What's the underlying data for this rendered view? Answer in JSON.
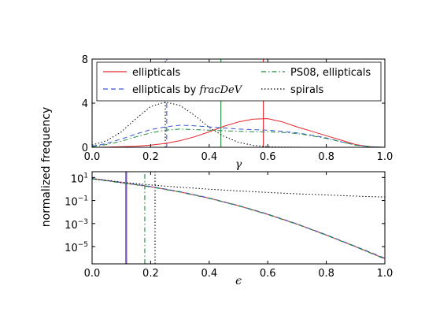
{
  "chart_data": [
    {
      "type": "line",
      "panel": "top",
      "xlabel": "γ",
      "ylabel": "normalized frequency",
      "xlim": [
        0.0,
        1.0
      ],
      "ylim": [
        0,
        8
      ],
      "xticks": [
        "0.0",
        "0.2",
        "0.4",
        "0.6",
        "0.8",
        "1.0"
      ],
      "xtick_values": [
        0.0,
        0.2,
        0.4,
        0.6,
        0.8,
        1.0
      ],
      "yticks": [
        "0",
        "4",
        "8"
      ],
      "ytick_values": [
        0,
        4,
        8
      ],
      "grid": false,
      "legend_position": "top",
      "legend": [
        {
          "series": "ellipticals",
          "text": "ellipticals",
          "color": "#e8262a",
          "dash": "solid"
        },
        {
          "series": "ellipticals_fracdev",
          "text_prefix": "ellipticals by ",
          "text_math": "fracDeV",
          "color": "#3a55d8",
          "dash": "dashed"
        },
        {
          "series": "ps08",
          "text": "PS08, ellipticals",
          "color": "#1a8a3c",
          "dash": "dashdot"
        },
        {
          "series": "spirals",
          "text": "spirals",
          "color": "#000000",
          "dash": "dotted"
        }
      ],
      "series": [
        {
          "key": "ellipticals",
          "color": "#e8262a",
          "dash": "solid",
          "x": [
            0.0,
            0.05,
            0.1,
            0.15,
            0.2,
            0.25,
            0.3,
            0.35,
            0.4,
            0.45,
            0.5,
            0.55,
            0.6,
            0.65,
            0.7,
            0.75,
            0.8,
            0.85,
            0.9,
            0.95,
            1.0
          ],
          "y": [
            0.0,
            0.02,
            0.05,
            0.1,
            0.2,
            0.35,
            0.6,
            0.95,
            1.4,
            1.9,
            2.3,
            2.55,
            2.6,
            2.3,
            1.85,
            1.45,
            1.05,
            0.65,
            0.25,
            0.05,
            0.0
          ]
        },
        {
          "key": "ellipticals_fracdev",
          "color": "#3a55d8",
          "dash": "dashed",
          "x": [
            0.0,
            0.05,
            0.1,
            0.15,
            0.2,
            0.25,
            0.3,
            0.35,
            0.4,
            0.45,
            0.5,
            0.55,
            0.6,
            0.65,
            0.7,
            0.75,
            0.8,
            0.85,
            0.9,
            0.95,
            1.0
          ],
          "y": [
            0.1,
            0.35,
            0.75,
            1.2,
            1.6,
            1.85,
            2.0,
            1.95,
            1.85,
            1.75,
            1.65,
            1.6,
            1.55,
            1.45,
            1.3,
            1.1,
            0.85,
            0.5,
            0.2,
            0.05,
            0.0
          ]
        },
        {
          "key": "ps08",
          "color": "#1a8a3c",
          "dash": "dashdot",
          "x": [
            0.0,
            0.05,
            0.1,
            0.15,
            0.2,
            0.25,
            0.3,
            0.35,
            0.4,
            0.45,
            0.5,
            0.55,
            0.6,
            0.65,
            0.7,
            0.75,
            0.8,
            0.85,
            0.9,
            0.95,
            1.0
          ],
          "y": [
            0.05,
            0.25,
            0.55,
            0.95,
            1.3,
            1.55,
            1.65,
            1.6,
            1.55,
            1.5,
            1.45,
            1.4,
            1.4,
            1.35,
            1.25,
            1.05,
            0.8,
            0.5,
            0.2,
            0.05,
            0.0
          ]
        },
        {
          "key": "spirals",
          "color": "#000000",
          "dash": "dotted",
          "x": [
            0.0,
            0.05,
            0.1,
            0.15,
            0.2,
            0.25,
            0.3,
            0.35,
            0.4,
            0.45,
            0.5,
            0.55,
            0.6,
            0.65,
            0.7,
            0.75
          ],
          "y": [
            0.2,
            0.6,
            1.4,
            2.6,
            3.7,
            4.1,
            3.8,
            2.9,
            1.8,
            1.0,
            0.45,
            0.18,
            0.05,
            0.02,
            0.01,
            0.0
          ]
        }
      ],
      "vlines": [
        {
          "x": 0.25,
          "color": "#000000",
          "dash": "dotted"
        },
        {
          "x": 0.255,
          "color": "#3a55d8",
          "dash": "dashed"
        },
        {
          "x": 0.44,
          "color": "#1a8a3c",
          "dash": "solid"
        },
        {
          "x": 0.585,
          "color": "#e8262a",
          "dash": "solid"
        }
      ]
    },
    {
      "type": "line",
      "panel": "bottom",
      "scale_y": "log",
      "xlabel": "ϵ",
      "ylabel": "normalized frequency",
      "xlim": [
        0.0,
        1.0
      ],
      "ylim_log10": [
        -6.5,
        1.5
      ],
      "xticks": [
        "0.0",
        "0.2",
        "0.4",
        "0.6",
        "0.8",
        "1.0"
      ],
      "xtick_values": [
        0.0,
        0.2,
        0.4,
        0.6,
        0.8,
        1.0
      ],
      "yticks_base": [
        "10",
        "10",
        "10",
        "10"
      ],
      "yticks_exp": [
        "1",
        "−1",
        "−3",
        "−5"
      ],
      "ytick_values_log10": [
        1,
        -1,
        -3,
        -5
      ],
      "grid": false,
      "series": [
        {
          "key": "ellipticals",
          "color": "#e8262a",
          "dash": "solid",
          "x": [
            0.0,
            0.1,
            0.2,
            0.3,
            0.4,
            0.5,
            0.6,
            0.7,
            0.8,
            0.9,
            1.0
          ],
          "log10_y": [
            0.9,
            0.55,
            0.2,
            -0.25,
            -0.8,
            -1.45,
            -2.2,
            -3.05,
            -4.0,
            -5.0,
            -6.05
          ]
        },
        {
          "key": "ellipticals_fracdev",
          "color": "#3a55d8",
          "dash": "dashed",
          "x": [
            0.0,
            0.1,
            0.2,
            0.3,
            0.4,
            0.5,
            0.6,
            0.7,
            0.8,
            0.9,
            1.0
          ],
          "log10_y": [
            0.92,
            0.57,
            0.22,
            -0.23,
            -0.78,
            -1.43,
            -2.18,
            -3.03,
            -3.98,
            -4.98,
            -6.0
          ]
        },
        {
          "key": "ps08",
          "color": "#1a8a3c",
          "dash": "dashdot",
          "x": [
            0.0,
            0.1,
            0.2,
            0.3,
            0.4,
            0.5,
            0.6,
            0.7,
            0.8,
            0.9,
            1.0
          ],
          "log10_y": [
            0.88,
            0.53,
            0.18,
            -0.27,
            -0.82,
            -1.47,
            -2.22,
            -3.07,
            -4.02,
            -5.02,
            -6.08
          ]
        },
        {
          "key": "spirals",
          "color": "#000000",
          "dash": "dotted",
          "x": [
            0.0,
            0.1,
            0.2,
            0.3,
            0.4,
            0.5,
            0.6,
            0.7,
            0.8,
            0.9,
            1.0
          ],
          "log10_y": [
            0.9,
            0.6,
            0.35,
            0.15,
            -0.02,
            -0.17,
            -0.3,
            -0.42,
            -0.52,
            -0.62,
            -0.7
          ]
        }
      ],
      "vlines": [
        {
          "x": 0.115,
          "color": "#e8262a",
          "dash": "solid"
        },
        {
          "x": 0.118,
          "color": "#3a55d8",
          "dash": "solid"
        },
        {
          "x": 0.18,
          "color": "#1a8a3c",
          "dash": "dashdot"
        },
        {
          "x": 0.215,
          "color": "#000000",
          "dash": "dotted"
        }
      ]
    }
  ]
}
